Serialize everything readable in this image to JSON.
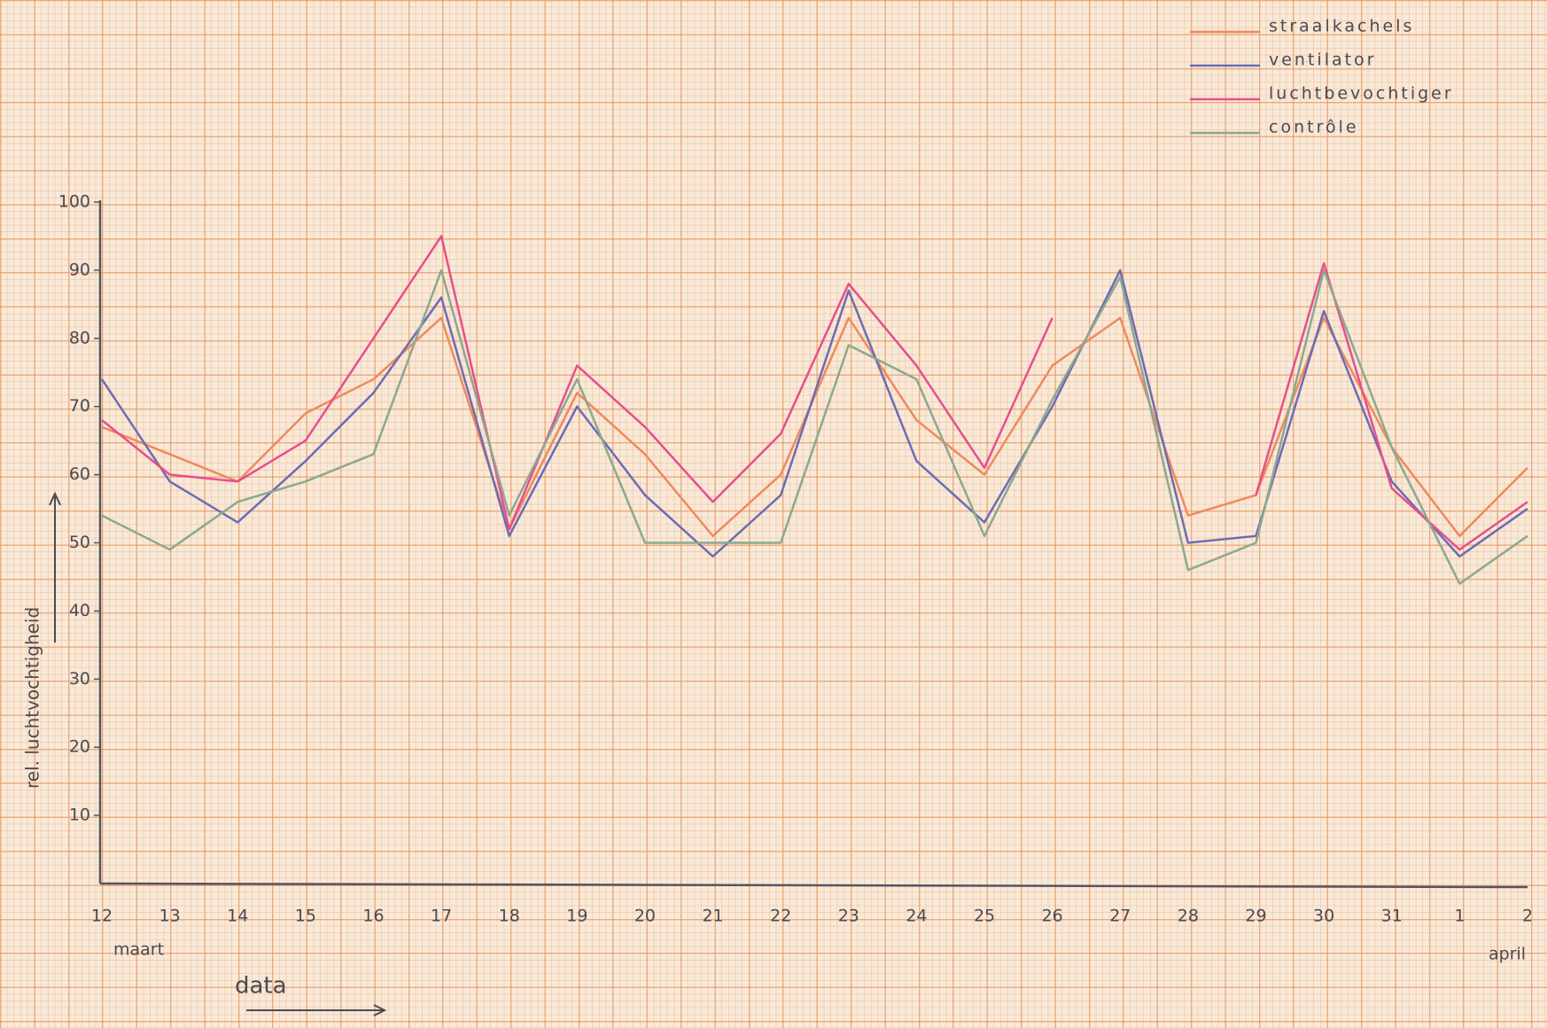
{
  "chart_data": {
    "type": "line",
    "categories": [
      "12",
      "13",
      "14",
      "15",
      "16",
      "17",
      "18",
      "19",
      "20",
      "21",
      "22",
      "23",
      "24",
      "25",
      "26",
      "27",
      "28",
      "29",
      "30",
      "31",
      "1",
      "2"
    ],
    "month_labels": [
      "maart",
      "april"
    ],
    "x_label": "data",
    "y_label": "rel. luchtvochtigheid",
    "ylim": [
      0,
      100
    ],
    "yticks": [
      10,
      20,
      30,
      40,
      50,
      60,
      70,
      80,
      90,
      100
    ],
    "legend": "top-right",
    "series": [
      {
        "name": "straalkachels",
        "color": "#ef8a5c",
        "values": [
          67,
          63,
          59,
          69,
          74,
          83,
          52,
          72,
          63,
          51,
          60,
          83,
          68,
          60,
          76,
          83,
          54,
          57,
          83,
          64,
          51,
          61
        ]
      },
      {
        "name": "ventilator",
        "color": "#6c6cb4",
        "values": [
          74,
          59,
          53,
          62,
          72,
          86,
          51,
          70,
          57,
          48,
          57,
          87,
          62,
          53,
          70,
          90,
          50,
          51,
          84,
          59,
          48,
          55
        ]
      },
      {
        "name": "luchtbevochtiger",
        "color": "#e64f8c",
        "values": [
          68,
          60,
          59,
          65,
          80,
          95,
          52,
          76,
          67,
          56,
          66,
          88,
          76,
          61,
          83,
          null,
          null,
          57,
          91,
          58,
          49,
          56
        ]
      },
      {
        "name": "contrôle",
        "color": "#8ca890",
        "values": [
          54,
          49,
          56,
          59,
          63,
          90,
          54,
          74,
          50,
          50,
          50,
          79,
          74,
          51,
          71,
          89,
          46,
          50,
          90,
          64,
          44,
          51
        ]
      }
    ]
  }
}
